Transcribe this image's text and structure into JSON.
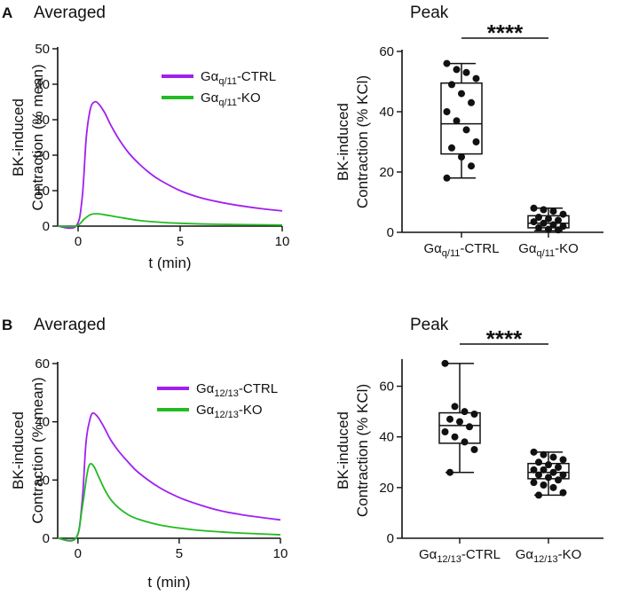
{
  "chart_data": [
    {
      "id": "A-averaged",
      "panel": "A",
      "type": "line",
      "title": "Averaged",
      "xlabel": "t (min)",
      "ylabel": [
        "BK-induced",
        "Contraction (% mean)"
      ],
      "xlim": [
        -1,
        10
      ],
      "ylim": [
        0,
        50
      ],
      "xticks": [
        0,
        5,
        10
      ],
      "yticks": [
        0,
        10,
        20,
        30,
        40,
        50
      ],
      "legend_position": "top-right",
      "series": [
        {
          "name_base": "Gα",
          "name_sub": "q/11",
          "name_suffix": "-CTRL",
          "color": "#a020f0",
          "x": [
            -1,
            -0.1,
            0.2,
            0.4,
            0.6,
            0.8,
            1.0,
            1.3,
            1.6,
            2,
            2.5,
            3,
            3.5,
            4,
            5,
            6,
            7,
            8,
            9,
            10
          ],
          "y": [
            0,
            0,
            8,
            25,
            33,
            35,
            34.5,
            32,
            28.5,
            24.5,
            20.5,
            17.5,
            15,
            13,
            10,
            8,
            6.7,
            5.7,
            4.9,
            4.3
          ]
        },
        {
          "name_base": "Gα",
          "name_sub": "q/11",
          "name_suffix": "-KO",
          "color": "#22bb22",
          "x": [
            -1,
            -0.1,
            0.3,
            0.6,
            0.9,
            1.3,
            2,
            3,
            4,
            5,
            7,
            10
          ],
          "y": [
            0,
            0,
            2,
            3.2,
            3.5,
            3.2,
            2.5,
            1.6,
            1.1,
            0.8,
            0.5,
            0.3
          ]
        }
      ]
    },
    {
      "id": "A-peak",
      "panel": "A",
      "type": "box",
      "title": "Peak",
      "ylabel": [
        "BK-induced",
        "Contraction (% KCl)"
      ],
      "ylim": [
        0,
        60
      ],
      "yticks": [
        0,
        20,
        40,
        60
      ],
      "significance": "****",
      "groups": [
        {
          "label_base": "Gα",
          "label_sub": "q/11",
          "label_suffix": "-CTRL",
          "min": 18,
          "q1": 26,
          "median": 36,
          "q3": 49.5,
          "max": 56,
          "points": [
            56,
            54,
            53,
            51,
            49,
            46,
            43,
            40,
            37,
            34,
            30,
            28,
            25,
            22,
            18
          ]
        },
        {
          "label_base": "Gα",
          "label_sub": "q/11",
          "label_suffix": "-KO",
          "min": 0.5,
          "q1": 1.5,
          "median": 3,
          "q3": 5.5,
          "max": 8,
          "points": [
            8,
            7.5,
            7,
            6,
            5,
            4.5,
            4,
            3.5,
            3,
            2.5,
            2,
            1.5,
            1,
            0.8
          ]
        }
      ]
    },
    {
      "id": "B-averaged",
      "panel": "B",
      "type": "line",
      "title": "Averaged",
      "xlabel": "t (min)",
      "ylabel": [
        "BK-induced",
        "Contraction (% mean)"
      ],
      "xlim": [
        -1,
        10
      ],
      "ylim": [
        0,
        60
      ],
      "xticks": [
        0,
        5,
        10
      ],
      "yticks": [
        0,
        20,
        40,
        60
      ],
      "legend_position": "top-right",
      "series": [
        {
          "name_base": "Gα",
          "name_sub": "12/13",
          "name_suffix": "-CTRL",
          "color": "#a020f0",
          "x": [
            -1,
            -0.1,
            0.2,
            0.4,
            0.6,
            0.75,
            1.0,
            1.3,
            1.6,
            2,
            2.5,
            3,
            4,
            5,
            6,
            7,
            8,
            9,
            10
          ],
          "y": [
            0,
            0,
            12,
            33,
            41,
            43,
            41.5,
            38,
            34,
            30,
            26,
            22.5,
            17.5,
            14,
            11.5,
            9.5,
            8.2,
            7.2,
            6.3
          ]
        },
        {
          "name_base": "Gα",
          "name_sub": "12/13",
          "name_suffix": "-KO",
          "color": "#22bb22",
          "x": [
            -1,
            -0.1,
            0.2,
            0.45,
            0.6,
            0.8,
            1.0,
            1.3,
            1.6,
            2,
            2.5,
            3,
            4,
            5,
            6,
            7,
            8,
            10
          ],
          "y": [
            0,
            0,
            10,
            22,
            25.5,
            24.5,
            21.5,
            17,
            13.5,
            10.5,
            8,
            6.5,
            4.6,
            3.5,
            2.7,
            2.2,
            1.8,
            1.2
          ]
        }
      ]
    },
    {
      "id": "B-peak",
      "panel": "B",
      "type": "box",
      "title": "Peak",
      "ylabel": [
        "BK-induced",
        "Contraction (% KCl)"
      ],
      "ylim": [
        0,
        70
      ],
      "yticks": [
        0,
        20,
        40,
        60
      ],
      "significance": "****",
      "groups": [
        {
          "label_base": "Gα",
          "label_sub": "12/13",
          "label_suffix": "-CTRL",
          "min": 26,
          "q1": 37.5,
          "median": 44.5,
          "q3": 49.5,
          "max": 69,
          "points": [
            69,
            52,
            50,
            49,
            47,
            46,
            44,
            42,
            40,
            38,
            35,
            26
          ]
        },
        {
          "label_base": "Gα",
          "label_sub": "12/13",
          "label_suffix": "-KO",
          "min": 17,
          "q1": 23.5,
          "median": 26,
          "q3": 29.5,
          "max": 34,
          "points": [
            34,
            33,
            32,
            31,
            30,
            29,
            28,
            27,
            27,
            26,
            25,
            25,
            24,
            23,
            22,
            21,
            20,
            18,
            17
          ]
        }
      ]
    }
  ]
}
